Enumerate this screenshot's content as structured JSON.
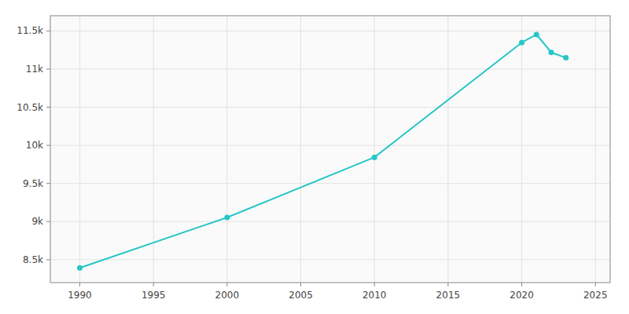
{
  "chart_data": {
    "type": "line",
    "x": [
      1990,
      2000,
      2010,
      2020,
      2021,
      2022,
      2023
    ],
    "values": [
      8393,
      9054,
      9843,
      11348,
      11453,
      11219,
      11148
    ],
    "color": "#26C6C6",
    "marker": "circle",
    "xlim": [
      1988,
      2026
    ],
    "ylim": [
      8200,
      11700
    ],
    "xticks": [
      1990,
      1995,
      2000,
      2005,
      2010,
      2015,
      2020,
      2025
    ],
    "yticks": [
      {
        "value": 8500,
        "label": "8.5k"
      },
      {
        "value": 9000,
        "label": "9k"
      },
      {
        "value": 9500,
        "label": "9.5k"
      },
      {
        "value": 10000,
        "label": "10k"
      },
      {
        "value": 10500,
        "label": "10.5k"
      },
      {
        "value": 11000,
        "label": "11k"
      },
      {
        "value": 11500,
        "label": "11.5k"
      }
    ],
    "grid": true
  }
}
